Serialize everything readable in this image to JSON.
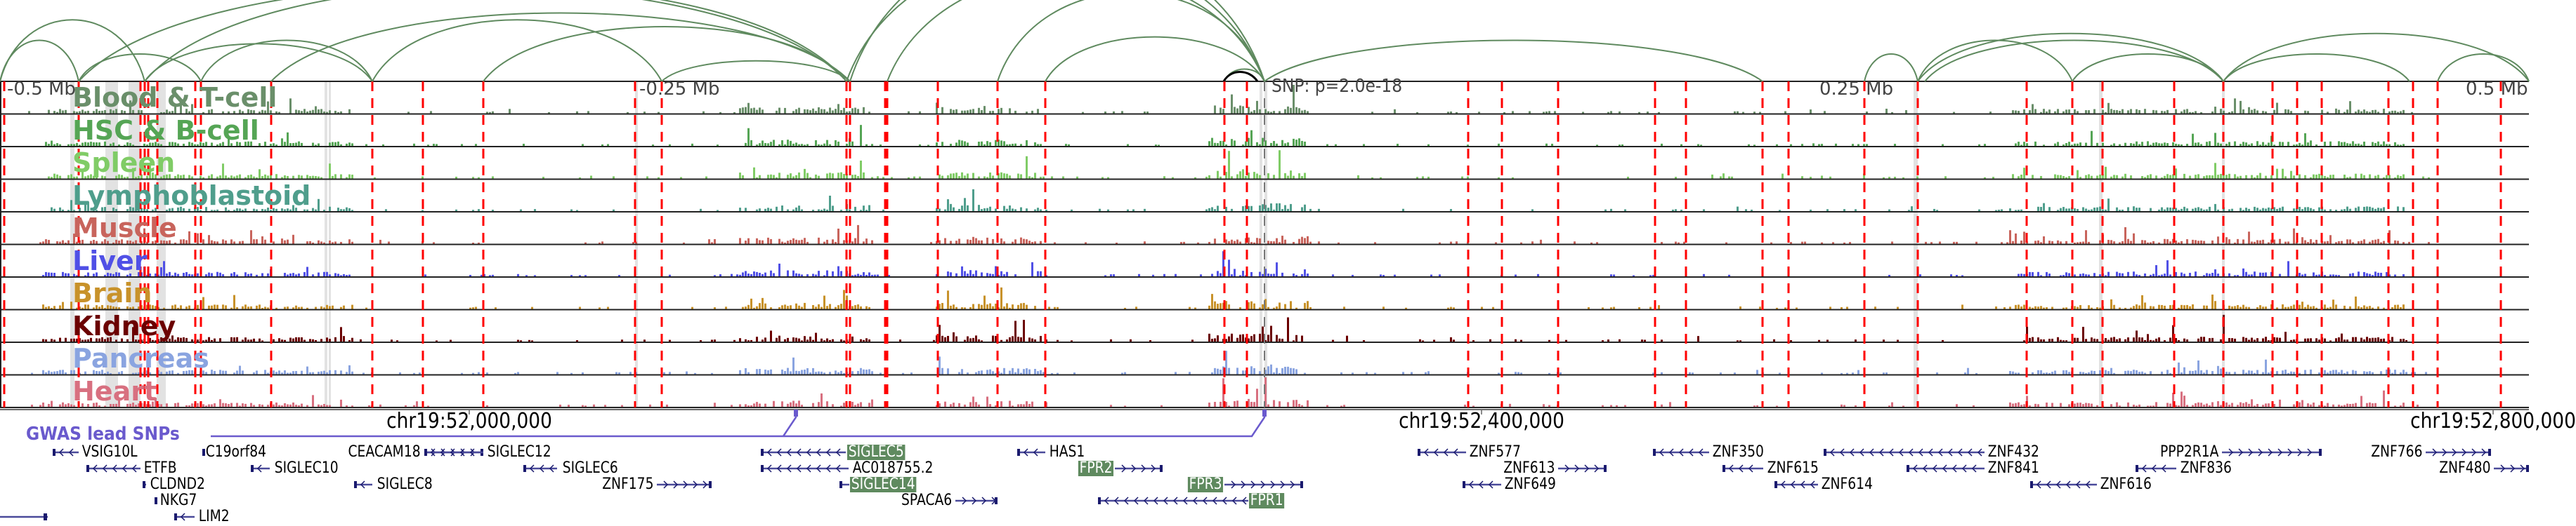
{
  "ruler": {
    "labels": [
      "-0.5 Mb",
      "-0.25 Mb",
      "0.25 Mb",
      "0.5 Mb"
    ]
  },
  "snp_label": "SNP: p=2.0e-18",
  "tracks": [
    {
      "label": "Blood & T-cell",
      "color": "#6a8f6a"
    },
    {
      "label": "HSC & B-cell",
      "color": "#55a555"
    },
    {
      "label": "Spleen",
      "color": "#80cc66"
    },
    {
      "label": "Lymphoblastoid",
      "color": "#4f9e8c"
    },
    {
      "label": "Muscle",
      "color": "#c8645c"
    },
    {
      "label": "Liver",
      "color": "#5050e6"
    },
    {
      "label": "Brain",
      "color": "#c8922a"
    },
    {
      "label": "Kidney",
      "color": "#6b0000"
    },
    {
      "label": "Pancreas",
      "color": "#8aa4e0"
    },
    {
      "label": "Heart",
      "color": "#d87080"
    }
  ],
  "coordinates": [
    "chr19:52,000,000",
    "chr19:52,400,000",
    "chr19:52,800,000"
  ],
  "gwas": {
    "label": "GWAS lead SNPs",
    "color": "#6a5acd"
  },
  "colors": {
    "arc": "#5f8a5f",
    "enhancer_line": "#ff0000",
    "gene": "#1a1a6e",
    "highlight": "#5f8a5f"
  },
  "genes": [
    {
      "name": "VSIG10L",
      "strand": "-"
    },
    {
      "name": "C19orf84",
      "strand": "+"
    },
    {
      "name": "CEACAM18",
      "strand": "+"
    },
    {
      "name": "SIGLEC12",
      "strand": "-"
    },
    {
      "name": "SIGLEC5",
      "strand": "-",
      "highlighted": true
    },
    {
      "name": "HAS1",
      "strand": "-"
    },
    {
      "name": "ZNF577",
      "strand": "-"
    },
    {
      "name": "ZNF350",
      "strand": "-"
    },
    {
      "name": "ZNF432",
      "strand": "-"
    },
    {
      "name": "PPP2R1A",
      "strand": "+"
    },
    {
      "name": "ZNF766",
      "strand": "+"
    },
    {
      "name": "ETFB",
      "strand": "-"
    },
    {
      "name": "SIGLEC10",
      "strand": "-"
    },
    {
      "name": "SIGLEC6",
      "strand": "-"
    },
    {
      "name": "AC018755.2",
      "strand": "-"
    },
    {
      "name": "FPR2",
      "strand": "+",
      "highlighted": true
    },
    {
      "name": "ZNF613",
      "strand": "+"
    },
    {
      "name": "ZNF615",
      "strand": "-"
    },
    {
      "name": "ZNF841",
      "strand": "-"
    },
    {
      "name": "ZNF836",
      "strand": "-"
    },
    {
      "name": "ZNF480",
      "strand": "+"
    },
    {
      "name": "CLDND2",
      "strand": "-"
    },
    {
      "name": "SIGLEC8",
      "strand": "-"
    },
    {
      "name": "ZNF175",
      "strand": "+"
    },
    {
      "name": "SIGLEC14",
      "strand": "-",
      "highlighted": true
    },
    {
      "name": "FPR3",
      "strand": "+",
      "highlighted": true
    },
    {
      "name": "ZNF649",
      "strand": "-"
    },
    {
      "name": "ZNF614",
      "strand": "-"
    },
    {
      "name": "ZNF616",
      "strand": "-"
    },
    {
      "name": "NKG7",
      "strand": "-"
    },
    {
      "name": "SPACA6",
      "strand": "+"
    },
    {
      "name": "FPR1",
      "strand": "-",
      "highlighted": true
    },
    {
      "name": "LIM2",
      "strand": "-"
    }
  ]
}
